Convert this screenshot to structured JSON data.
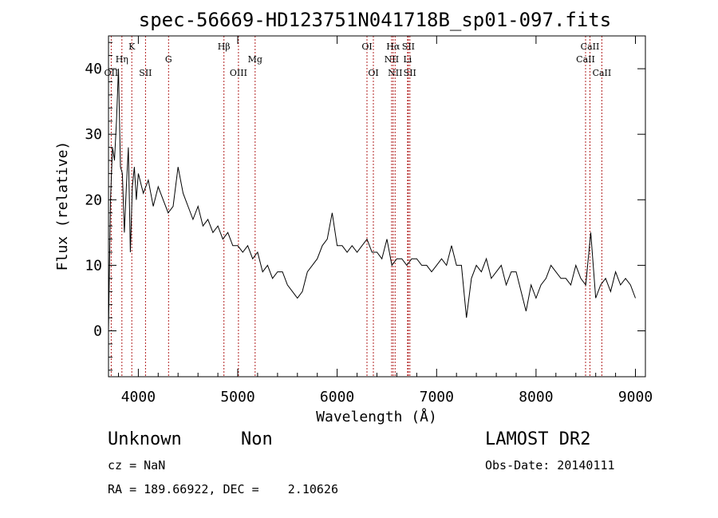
{
  "chart_data": {
    "type": "line",
    "title": "spec-56669-HD123751N041718B_sp01-097.fits",
    "xlabel": "Wavelength (Å)",
    "ylabel": "Flux (relative)",
    "xlim": [
      3700,
      9100
    ],
    "ylim": [
      -7,
      45
    ],
    "xticks": [
      4000,
      5000,
      6000,
      7000,
      8000,
      9000
    ],
    "xtick_labels": [
      "4000",
      "5000",
      "6000",
      "7000",
      "8000",
      "9000"
    ],
    "yticks": [
      0,
      10,
      20,
      30,
      40
    ],
    "ytick_labels": [
      "0",
      "10",
      "20",
      "30",
      "40"
    ],
    "grid": false,
    "series": [
      {
        "x": [
          3700,
          3720,
          3740,
          3760,
          3780,
          3800,
          3820,
          3840,
          3860,
          3880,
          3900,
          3920,
          3940,
          3960,
          3980,
          4000,
          4050,
          4100,
          4150,
          4200,
          4250,
          4300,
          4350,
          4400,
          4450,
          4500,
          4550,
          4600,
          4650,
          4700,
          4750,
          4800,
          4850,
          4900,
          4950,
          5000,
          5050,
          5100,
          5150,
          5200,
          5250,
          5300,
          5350,
          5400,
          5450,
          5500,
          5550,
          5600,
          5650,
          5700,
          5750,
          5800,
          5850,
          5900,
          5950,
          6000,
          6050,
          6100,
          6150,
          6200,
          6250,
          6300,
          6350,
          6400,
          6450,
          6500,
          6550,
          6600,
          6650,
          6700,
          6750,
          6800,
          6850,
          6900,
          6950,
          7000,
          7050,
          7100,
          7150,
          7200,
          7250,
          7300,
          7350,
          7400,
          7450,
          7500,
          7550,
          7600,
          7650,
          7700,
          7750,
          7800,
          7850,
          7900,
          7950,
          8000,
          8050,
          8100,
          8150,
          8200,
          8250,
          8300,
          8350,
          8400,
          8450,
          8500,
          8550,
          8600,
          8650,
          8700,
          8750,
          8800,
          8850,
          8900,
          8950,
          9000
        ],
        "values": [
          0,
          20,
          28,
          26,
          32,
          40,
          25,
          24,
          15,
          22,
          28,
          12,
          22,
          25,
          20,
          24,
          21,
          23,
          19,
          22,
          20,
          18,
          19,
          25,
          21,
          19,
          17,
          19,
          16,
          17,
          15,
          16,
          14,
          15,
          13,
          13,
          12,
          13,
          11,
          12,
          9,
          10,
          8,
          9,
          9,
          7,
          6,
          5,
          6,
          9,
          10,
          11,
          13,
          14,
          18,
          13,
          13,
          12,
          13,
          12,
          13,
          14,
          12,
          12,
          11,
          14,
          10,
          11,
          11,
          10,
          11,
          11,
          10,
          10,
          9,
          10,
          11,
          10,
          13,
          10,
          10,
          2,
          8,
          10,
          9,
          11,
          8,
          9,
          10,
          7,
          9,
          9,
          6,
          3,
          7,
          5,
          7,
          8,
          10,
          9,
          8,
          8,
          7,
          10,
          8,
          7,
          15,
          5,
          7,
          8,
          6,
          9,
          7,
          8,
          7,
          5
        ]
      }
    ],
    "lines": [
      {
        "label": "OII",
        "x": 3727,
        "row": 3
      },
      {
        "label": "Hη",
        "x": 3835,
        "row": 2
      },
      {
        "label": "K",
        "x": 3934,
        "row": 1
      },
      {
        "label": "SII",
        "x": 4072,
        "row": 3
      },
      {
        "label": "G",
        "x": 4304,
        "row": 2
      },
      {
        "label": "Hβ",
        "x": 4861,
        "row": 1
      },
      {
        "label": "OIII",
        "x": 5007,
        "row": 3
      },
      {
        "label": "Mg",
        "x": 5175,
        "row": 2
      },
      {
        "label": "OI",
        "x": 6300,
        "row": 1
      },
      {
        "label": "OI",
        "x": 6364,
        "row": 3
      },
      {
        "label": "NII",
        "x": 6548,
        "row": 2
      },
      {
        "label": "Hα",
        "x": 6563,
        "row": 1
      },
      {
        "label": "NII",
        "x": 6583,
        "row": 3
      },
      {
        "label": "SII",
        "x": 6716,
        "row": 1
      },
      {
        "label": "Li",
        "x": 6708,
        "row": 2
      },
      {
        "label": "SII",
        "x": 6731,
        "row": 3
      },
      {
        "label": "CaII",
        "x": 8498,
        "row": 2
      },
      {
        "label": "CaII",
        "x": 8542,
        "row": 1
      },
      {
        "label": "CaII",
        "x": 8662,
        "row": 3
      }
    ]
  },
  "info": {
    "class_label": "Unknown",
    "subclass_label": "Non",
    "survey_label": "LAMOST DR2",
    "cz_text": "cz = NaN",
    "obs_date_text": "Obs-Date: 20140111",
    "coords_text": "RA = 189.66922, DEC =    2.10626"
  }
}
